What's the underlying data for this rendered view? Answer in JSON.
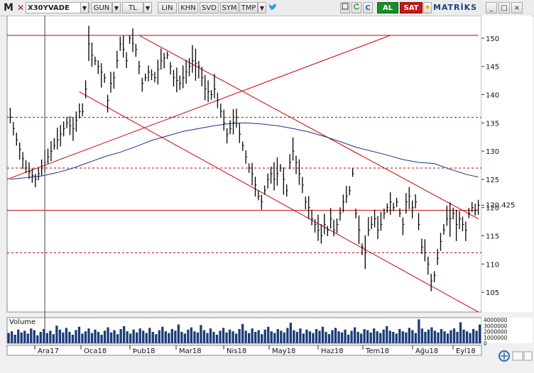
{
  "toolbar": {
    "logo": "M",
    "symbol": "X30YVADE",
    "buttons": [
      "GUN",
      "TL",
      "LIN",
      "KHN",
      "SVD",
      "SYM",
      "TMP"
    ],
    "icons": [
      "twitter-icon",
      "refresh-icon",
      "c-icon",
      "sun-icon"
    ],
    "buy_label": "AL",
    "sell_label": "SAT",
    "brand": "MATRİKS",
    "window_buttons": [
      "_",
      "□",
      "×"
    ]
  },
  "chart_data": [
    {
      "type": "candlestick",
      "title": "",
      "x_labels": [
        "Ara17",
        "Oca18",
        "Þub18",
        "Mar18",
        "Nis18",
        "May18",
        "Haz18",
        "Tem18",
        "Ağu18",
        "Eyl18"
      ],
      "y_ticks": [
        105,
        110,
        115,
        120,
        125,
        130,
        135,
        140,
        145,
        150
      ],
      "ylim": [
        101.5,
        154
      ],
      "last_price_label": "120.425",
      "last_price": 120.425,
      "colors": {
        "price": "#000000",
        "trend": "#cc0000",
        "moving_average": "#1c2f8c",
        "grid": "#c00000"
      },
      "close_path": [
        [
          0,
          136
        ],
        [
          2,
          132
        ],
        [
          5,
          127
        ],
        [
          8,
          125
        ],
        [
          10,
          127
        ],
        [
          12,
          129
        ],
        [
          14,
          131
        ],
        [
          16,
          133
        ],
        [
          18,
          135
        ],
        [
          20,
          134
        ],
        [
          22,
          137
        ],
        [
          23,
          137
        ],
        [
          24,
          141
        ],
        [
          25,
          149
        ],
        [
          26,
          147
        ],
        [
          28,
          145
        ],
        [
          30,
          143
        ],
        [
          31,
          139
        ],
        [
          32,
          142
        ],
        [
          33,
          143
        ],
        [
          34,
          146
        ],
        [
          35,
          149
        ],
        [
          36,
          148
        ],
        [
          37,
          146
        ],
        [
          38,
          150
        ],
        [
          40,
          148
        ],
        [
          41,
          145
        ],
        [
          42,
          142
        ],
        [
          43,
          143
        ],
        [
          44,
          144
        ],
        [
          46,
          143
        ],
        [
          48,
          146
        ],
        [
          50,
          147
        ],
        [
          52,
          143
        ],
        [
          54,
          142
        ],
        [
          56,
          144
        ],
        [
          58,
          146
        ],
        [
          60,
          145
        ],
        [
          61,
          143
        ],
        [
          62,
          141
        ],
        [
          64,
          140
        ],
        [
          65,
          141
        ],
        [
          66,
          139
        ],
        [
          67,
          137
        ],
        [
          68,
          135
        ],
        [
          69,
          133
        ],
        [
          70,
          134
        ],
        [
          71,
          135
        ],
        [
          72,
          136
        ],
        [
          73,
          133
        ],
        [
          74,
          131
        ],
        [
          75,
          129
        ],
        [
          76,
          127
        ],
        [
          77,
          126
        ],
        [
          78,
          124
        ],
        [
          79,
          122
        ],
        [
          80,
          121
        ],
        [
          81,
          123
        ],
        [
          82,
          125
        ],
        [
          83,
          126
        ],
        [
          84,
          125
        ],
        [
          86,
          127
        ],
        [
          87,
          125
        ],
        [
          88,
          123
        ],
        [
          89,
          128
        ],
        [
          90,
          130
        ],
        [
          91,
          128
        ],
        [
          92,
          126
        ],
        [
          93,
          124
        ],
        [
          94,
          121
        ],
        [
          95,
          120
        ],
        [
          96,
          118
        ],
        [
          97,
          117
        ],
        [
          98,
          116
        ],
        [
          99,
          115
        ],
        [
          100,
          117
        ],
        [
          101,
          116
        ],
        [
          102,
          118
        ],
        [
          103,
          116
        ],
        [
          104,
          117
        ],
        [
          106,
          121
        ],
        [
          107,
          122
        ],
        [
          108,
          123
        ],
        [
          109,
          126
        ],
        [
          110,
          119
        ],
        [
          111,
          116
        ],
        [
          112,
          113
        ],
        [
          113,
          112
        ],
        [
          114,
          116
        ],
        [
          115,
          117
        ],
        [
          116,
          118
        ],
        [
          117,
          116
        ],
        [
          118,
          117
        ],
        [
          119,
          119
        ],
        [
          120,
          120
        ],
        [
          121,
          121
        ],
        [
          122,
          120
        ],
        [
          123,
          121
        ],
        [
          124,
          119
        ],
        [
          125,
          117
        ],
        [
          126,
          121
        ],
        [
          127,
          122
        ],
        [
          128,
          120
        ],
        [
          129,
          121
        ],
        [
          130,
          117
        ],
        [
          131,
          113
        ],
        [
          132,
          112
        ],
        [
          133,
          110
        ],
        [
          134,
          107
        ],
        [
          135,
          108
        ],
        [
          136,
          111
        ],
        [
          137,
          114
        ],
        [
          138,
          116
        ],
        [
          139,
          118
        ],
        [
          140,
          118
        ],
        [
          141,
          119
        ],
        [
          142,
          117
        ],
        [
          143,
          118
        ],
        [
          144,
          117
        ],
        [
          145,
          116
        ],
        [
          146,
          119
        ],
        [
          147,
          120
        ],
        [
          148,
          119.5
        ],
        [
          149,
          120.425
        ]
      ],
      "moving_average_path": [
        [
          0,
          125
        ],
        [
          5,
          125.3
        ],
        [
          10,
          125.6
        ],
        [
          15,
          126.2
        ],
        [
          20,
          127
        ],
        [
          25,
          128
        ],
        [
          30,
          129
        ],
        [
          35,
          129.8
        ],
        [
          40,
          130.8
        ],
        [
          45,
          131.9
        ],
        [
          50,
          132.7
        ],
        [
          55,
          133.5
        ],
        [
          60,
          134
        ],
        [
          65,
          134.5
        ],
        [
          70,
          134.9
        ],
        [
          75,
          135
        ],
        [
          80,
          134.8
        ],
        [
          85,
          134.5
        ],
        [
          90,
          134
        ],
        [
          95,
          133.4
        ],
        [
          100,
          132.6
        ],
        [
          105,
          131.7
        ],
        [
          110,
          130.7
        ],
        [
          115,
          130
        ],
        [
          120,
          129.3
        ],
        [
          125,
          128.5
        ],
        [
          130,
          128
        ],
        [
          135,
          127.8
        ],
        [
          140,
          126.8
        ],
        [
          145,
          125.9
        ],
        [
          149,
          125.4
        ]
      ],
      "trend_lines": [
        {
          "from": [
            -1,
            125
          ],
          "to": [
            121,
            150.5
          ]
        },
        {
          "from": [
            41,
            150.5
          ],
          "to": [
            149,
            118
          ]
        },
        {
          "from": [
            22,
            140.5
          ],
          "to": [
            149,
            101.5
          ]
        },
        {
          "from": [
            -1,
            150.5
          ],
          "to": [
            149,
            150.5
          ]
        },
        {
          "from": [
            -1,
            119.5
          ],
          "to": [
            149,
            119.5
          ]
        }
      ],
      "horizontal_levels": [
        136,
        127,
        112
      ],
      "vertical_marker_x": 11
    },
    {
      "type": "bar",
      "title": "Volume",
      "y_tick_labels": [
        "4000000",
        "3000000",
        "2000000",
        "1000000",
        "0"
      ],
      "ylim": [
        0,
        4500000
      ],
      "color": "#1c3c78",
      "values": [
        1800000,
        2100000,
        1500000,
        2400000,
        1900000,
        2200000,
        1700000,
        2600000,
        2300000,
        1400000,
        2000000,
        2500000,
        1800000,
        2200000,
        1600000,
        3100000,
        2400000,
        1900000,
        2700000,
        2000000,
        1500000,
        2300000,
        2900000,
        1700000,
        2100000,
        2600000,
        1800000,
        2400000,
        2000000,
        1500000,
        2200000,
        2800000,
        1900000,
        2300000,
        1600000,
        2500000,
        3000000,
        2100000,
        1700000,
        2400000,
        1900000,
        2600000,
        2200000,
        1800000,
        2700000,
        2000000,
        1600000,
        2300000,
        2900000,
        2100000,
        1800000,
        2500000,
        2200000,
        3300000,
        2000000,
        1700000,
        2400000,
        2800000,
        2100000,
        1900000,
        3200000,
        2300000,
        1800000,
        2600000,
        2000000,
        1500000,
        2200000,
        2700000,
        1900000,
        2400000,
        2100000,
        1700000,
        2500000,
        3400000,
        2200000,
        1800000,
        2600000,
        2000000,
        2300000,
        1600000,
        2400000,
        2900000,
        2100000,
        1800000,
        2500000,
        2200000,
        1900000,
        2700000,
        3600000,
        2300000,
        2000000,
        2600000,
        1700000,
        2400000,
        2100000,
        1800000,
        2500000,
        2200000,
        2900000,
        2000000,
        1600000,
        2300000,
        2700000,
        2100000,
        1900000,
        2400000,
        1500000,
        2200000,
        2800000,
        2000000,
        1700000,
        2500000,
        2300000,
        1900000,
        2600000,
        2100000,
        1800000,
        2400000,
        3000000,
        2200000,
        2000000,
        1700000,
        2500000,
        2100000,
        1900000,
        2700000,
        2300000,
        1800000,
        4200000,
        2600000,
        2000000,
        2400000,
        2800000,
        2200000,
        1900000,
        2500000,
        2100000,
        1700000,
        2300000,
        2600000,
        2000000,
        3700000,
        2400000,
        2100000,
        1800000,
        2500000,
        2200000,
        3300000
      ]
    }
  ]
}
